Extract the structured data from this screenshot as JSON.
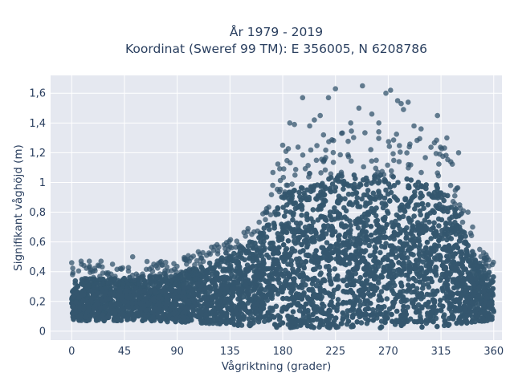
{
  "chart_data": {
    "type": "scatter",
    "title_line1": "År 1979 - 2019",
    "title_line2": "Koordinat (Sweref 99 TM): E 356005, N 6208786",
    "xlabel": "Vågriktning (grader)",
    "ylabel": "Signifikant våghöjd (m)",
    "xlim": [
      -18,
      367
    ],
    "ylim": [
      -0.06,
      1.72
    ],
    "grid": true,
    "colors": {
      "marker": "#34566e",
      "plot_bg": "#e5e8f0",
      "grid": "#ffffff",
      "text": "#2a3f5f"
    },
    "x_ticks": [
      {
        "value": 0,
        "label": "0"
      },
      {
        "value": 45,
        "label": "45"
      },
      {
        "value": 90,
        "label": "90"
      },
      {
        "value": 135,
        "label": "135"
      },
      {
        "value": 180,
        "label": "180"
      },
      {
        "value": 225,
        "label": "225"
      },
      {
        "value": 270,
        "label": "270"
      },
      {
        "value": 315,
        "label": "315"
      },
      {
        "value": 360,
        "label": "360"
      }
    ],
    "y_ticks": [
      {
        "value": 0,
        "label": "0"
      },
      {
        "value": 0.2,
        "label": "0,2"
      },
      {
        "value": 0.4,
        "label": "0,4"
      },
      {
        "value": 0.6,
        "label": "0,6"
      },
      {
        "value": 0.8,
        "label": "0,8"
      },
      {
        "value": 1.0,
        "label": "1"
      },
      {
        "value": 1.2,
        "label": "1,2"
      },
      {
        "value": 1.4,
        "label": "1,4"
      },
      {
        "value": 1.6,
        "label": "1,6"
      }
    ],
    "envelope": {
      "x": [
        0,
        45,
        90,
        135,
        160,
        180,
        225,
        270,
        315,
        330,
        345,
        360
      ],
      "y_low": [
        0.07,
        0.07,
        0.06,
        0.04,
        0.03,
        0.02,
        0.02,
        0.02,
        0.02,
        0.04,
        0.06,
        0.07
      ],
      "y_high": [
        0.35,
        0.36,
        0.38,
        0.52,
        0.65,
        0.92,
        1.05,
        1.05,
        0.98,
        0.8,
        0.48,
        0.38
      ]
    },
    "outliers": [
      {
        "x": 0,
        "y": 0.46
      },
      {
        "x": 8,
        "y": 0.47
      },
      {
        "x": 15,
        "y": 0.47
      },
      {
        "x": 25,
        "y": 0.47
      },
      {
        "x": 52,
        "y": 0.5
      },
      {
        "x": 70,
        "y": 0.45
      },
      {
        "x": 97,
        "y": 0.48
      },
      {
        "x": 130,
        "y": 0.58
      },
      {
        "x": 150,
        "y": 0.67
      },
      {
        "x": 165,
        "y": 0.8
      },
      {
        "x": 180,
        "y": 1.25
      },
      {
        "x": 186,
        "y": 1.4
      },
      {
        "x": 190,
        "y": 1.39
      },
      {
        "x": 197,
        "y": 1.57
      },
      {
        "x": 203,
        "y": 1.38
      },
      {
        "x": 207,
        "y": 1.42
      },
      {
        "x": 212,
        "y": 1.45
      },
      {
        "x": 219,
        "y": 1.57
      },
      {
        "x": 225,
        "y": 1.63
      },
      {
        "x": 238,
        "y": 1.4
      },
      {
        "x": 245,
        "y": 1.5
      },
      {
        "x": 248,
        "y": 1.65
      },
      {
        "x": 256,
        "y": 1.46
      },
      {
        "x": 262,
        "y": 1.4
      },
      {
        "x": 268,
        "y": 1.6
      },
      {
        "x": 272,
        "y": 1.62
      },
      {
        "x": 278,
        "y": 1.55
      },
      {
        "x": 281,
        "y": 1.53
      },
      {
        "x": 283,
        "y": 1.49
      },
      {
        "x": 287,
        "y": 1.54
      },
      {
        "x": 292,
        "y": 1.38
      },
      {
        "x": 298,
        "y": 1.36
      },
      {
        "x": 312,
        "y": 1.45
      },
      {
        "x": 320,
        "y": 1.3
      },
      {
        "x": 330,
        "y": 1.2
      },
      {
        "x": 338,
        "y": 0.8
      },
      {
        "x": 342,
        "y": 0.7
      },
      {
        "x": 348,
        "y": 0.55
      }
    ]
  }
}
